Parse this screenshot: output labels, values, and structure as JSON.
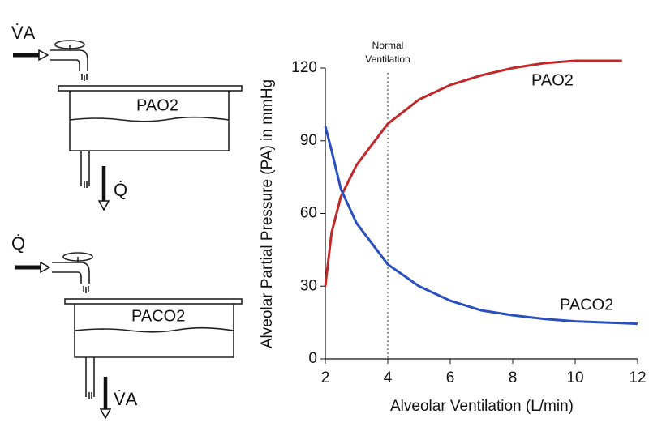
{
  "chart_data": {
    "type": "line",
    "x": [
      2,
      2.2,
      2.5,
      3,
      4,
      5,
      6,
      7,
      8,
      9,
      10,
      11,
      11.5,
      12
    ],
    "series": [
      {
        "name": "PAO2",
        "color": "#c0282a",
        "values": [
          30,
          52,
          67,
          80,
          97,
          107,
          113,
          117,
          120,
          122,
          123,
          123,
          123,
          null
        ]
      },
      {
        "name": "PACO2",
        "color": "#2a4fc0",
        "values": [
          96,
          86,
          70,
          56,
          39,
          30,
          24,
          20,
          18,
          16.5,
          15.5,
          15,
          14.8,
          14.5
        ]
      }
    ],
    "xlim": [
      2,
      12
    ],
    "xticks": [
      2,
      4,
      6,
      8,
      10,
      12
    ],
    "ylim": [
      0,
      120
    ],
    "yticks": [
      0,
      30,
      60,
      90,
      120
    ],
    "x_label": "Alveolar Ventilation (L/min)",
    "y_label": "Alveolar Partial Pressure (PA) in mmHg",
    "annotation": {
      "x": 4,
      "text": [
        "Normal",
        "Ventilation"
      ]
    },
    "grid": false
  },
  "diagram": {
    "top": {
      "inflow": "V̇A",
      "tank": "PAO2",
      "outflow": "Q̇"
    },
    "bottom": {
      "inflow": "Q̇",
      "tank": "PACO2",
      "outflow": "V̇A"
    }
  }
}
